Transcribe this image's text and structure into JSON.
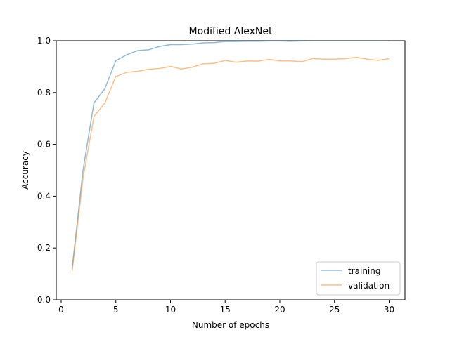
{
  "chart_data": {
    "type": "line",
    "title": "Modified AlexNet",
    "xlabel": "Number of epochs",
    "ylabel": "Accuracy",
    "xlim": [
      -0.45,
      31.45
    ],
    "ylim": [
      0.0,
      1.0
    ],
    "xticks": [
      0,
      5,
      10,
      15,
      20,
      25,
      30
    ],
    "xtick_labels": [
      "0",
      "5",
      "10",
      "15",
      "20",
      "25",
      "30"
    ],
    "yticks": [
      0.0,
      0.2,
      0.4,
      0.6,
      0.8,
      1.0
    ],
    "ytick_labels": [
      "0.0",
      "0.2",
      "0.4",
      "0.6",
      "0.8",
      "1.0"
    ],
    "grid": false,
    "legend_position": "lower-right",
    "x": [
      1,
      2,
      3,
      4,
      5,
      6,
      7,
      8,
      9,
      10,
      11,
      12,
      13,
      14,
      15,
      16,
      17,
      18,
      19,
      20,
      21,
      22,
      23,
      24,
      25,
      26,
      27,
      28,
      29,
      30
    ],
    "series": [
      {
        "name": "training",
        "color": "#1f77b4",
        "values": [
          0.12,
          0.5,
          0.76,
          0.815,
          0.923,
          0.946,
          0.962,
          0.965,
          0.978,
          0.985,
          0.985,
          0.987,
          0.992,
          0.993,
          0.997,
          0.997,
          0.998,
          0.998,
          0.999,
          0.999,
          0.998,
          0.999,
          1.0,
          1.0,
          1.0,
          1.0,
          1.0,
          1.0,
          1.0,
          1.0
        ]
      },
      {
        "name": "validation",
        "color": "#ff7f0e",
        "values": [
          0.11,
          0.47,
          0.708,
          0.76,
          0.862,
          0.878,
          0.882,
          0.89,
          0.893,
          0.901,
          0.891,
          0.898,
          0.911,
          0.913,
          0.924,
          0.917,
          0.922,
          0.921,
          0.928,
          0.922,
          0.922,
          0.919,
          0.931,
          0.929,
          0.929,
          0.931,
          0.936,
          0.929,
          0.924,
          0.931
        ]
      }
    ]
  }
}
